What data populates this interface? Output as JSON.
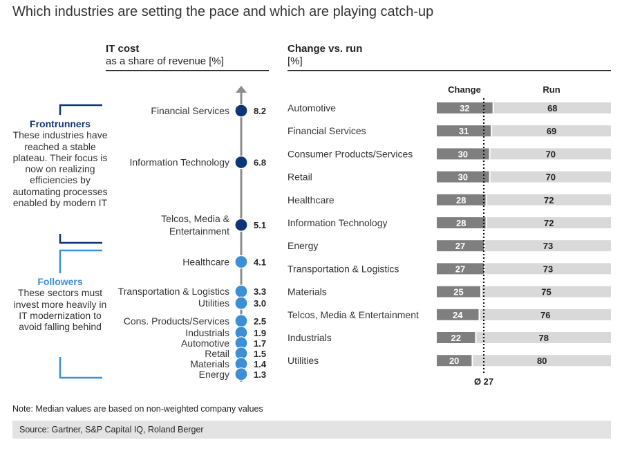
{
  "title": "Which industries are setting the pace and which are playing catch-up",
  "note": "Note: Median values are based on non-weighted company values",
  "source": "Source: Gartner, S&P Capital IQ, Roland Berger",
  "colors": {
    "frontrunner": "#0e3676",
    "follower": "#3c8fd5",
    "change": "#7f7f80",
    "run": "#d9d9da",
    "axis": "#8c8c8c"
  },
  "groups": [
    {
      "title": "Frontrunners",
      "text": "These industries have reached a stable plateau. Their focus is now on realizing efficiencies by automating processes enabled by modern IT"
    },
    {
      "title": "Followers",
      "text": "These sectors must invest more heavily in IT modernization to avoid falling behind"
    }
  ],
  "chart_data": [
    {
      "type": "scatter",
      "title": "IT cost",
      "subtitle": "as a share of revenue [%]",
      "categories": [
        "Financial Services",
        "Information Technology",
        "Telcos, Media & Entertainment",
        "Healthcare",
        "Transportation & Logistics",
        "Utilities",
        "Cons. Products/Services",
        "Industrials",
        "Automotive",
        "Retail",
        "Materials",
        "Energy"
      ],
      "values": [
        8.2,
        6.8,
        5.1,
        4.1,
        3.3,
        3.0,
        2.5,
        1.9,
        1.7,
        1.5,
        1.4,
        1.3
      ],
      "labels": [
        "8.2",
        "6.8",
        "5.1",
        "4.1",
        "3.3",
        "3.0",
        "2.5",
        "1.9",
        "1.7",
        "1.5",
        "1.4",
        "1.3"
      ],
      "group": [
        "Frontrunners",
        "Frontrunners",
        "Frontrunners",
        "Followers",
        "Followers",
        "Followers",
        "Followers",
        "Followers",
        "Followers",
        "Followers",
        "Followers",
        "Followers"
      ]
    },
    {
      "type": "bar",
      "stacked": true,
      "title": "Change vs. run",
      "subtitle": "[%]",
      "categories": [
        "Automotive",
        "Financial Services",
        "Consumer Products/Services",
        "Retail",
        "Healthcare",
        "Information Technology",
        "Energy",
        "Transportation & Logistics",
        "Materials",
        "Telcos, Media & Entertainment",
        "Industrials",
        "Utilities"
      ],
      "series": [
        {
          "name": "Change",
          "values": [
            32,
            31,
            30,
            30,
            28,
            28,
            27,
            27,
            25,
            24,
            22,
            20
          ]
        },
        {
          "name": "Run",
          "values": [
            68,
            69,
            70,
            70,
            72,
            72,
            73,
            73,
            75,
            76,
            78,
            80
          ]
        }
      ],
      "average": 27,
      "average_label": "Ø 27",
      "xlim": [
        0,
        100
      ]
    }
  ]
}
